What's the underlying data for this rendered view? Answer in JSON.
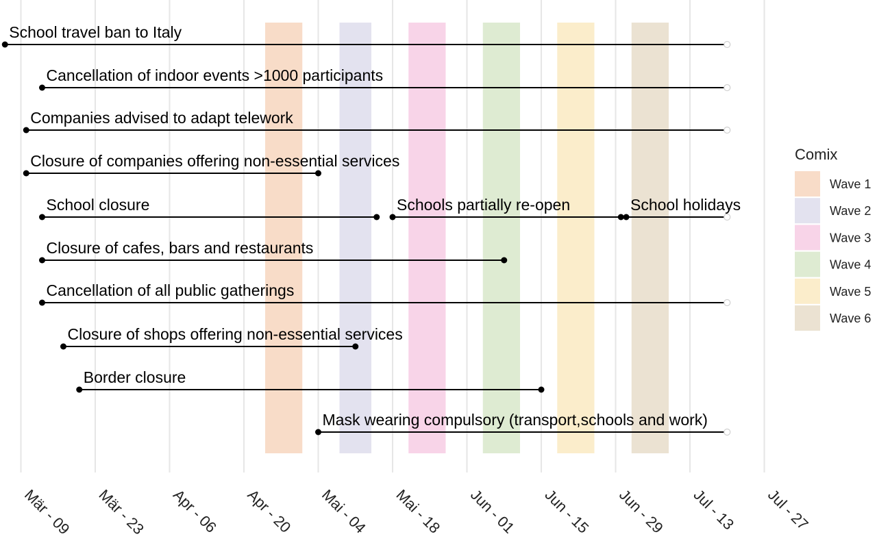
{
  "chart_data": {
    "type": "timeline",
    "x_axis": {
      "ticks": [
        "Mär - 09",
        "Mär - 23",
        "Apr - 06",
        "Apr - 20",
        "Mai - 04",
        "Mai - 18",
        "Jun - 01",
        "Jun - 15",
        "Jun - 29",
        "Jul - 13",
        "Jul - 27"
      ],
      "tick_dates": [
        "2020-03-09",
        "2020-03-23",
        "2020-04-06",
        "2020-04-20",
        "2020-05-04",
        "2020-05-18",
        "2020-06-01",
        "2020-06-15",
        "2020-06-29",
        "2020-07-13",
        "2020-07-27"
      ],
      "range": [
        "2020-03-06",
        "2020-07-27"
      ],
      "grid": true
    },
    "legend": {
      "title": "Comix",
      "position": "right",
      "items": [
        {
          "label": "Wave 1",
          "color": "#f8dcc8"
        },
        {
          "label": "Wave 2",
          "color": "#e3e2ef"
        },
        {
          "label": "Wave 3",
          "color": "#f8d4e8"
        },
        {
          "label": "Wave 4",
          "color": "#deebd2"
        },
        {
          "label": "Wave 5",
          "color": "#fbedcb"
        },
        {
          "label": "Wave 6",
          "color": "#ebe2d2"
        }
      ]
    },
    "waves": [
      {
        "name": "Wave 1",
        "start": "2020-04-24",
        "end": "2020-05-01",
        "color": "#f8dcc8"
      },
      {
        "name": "Wave 2",
        "start": "2020-05-08",
        "end": "2020-05-14",
        "color": "#e3e2ef"
      },
      {
        "name": "Wave 3",
        "start": "2020-05-21",
        "end": "2020-05-28",
        "color": "#f8d4e8"
      },
      {
        "name": "Wave 4",
        "start": "2020-06-04",
        "end": "2020-06-11",
        "color": "#deebd2"
      },
      {
        "name": "Wave 5",
        "start": "2020-06-18",
        "end": "2020-06-25",
        "color": "#fbedcb"
      },
      {
        "name": "Wave 6",
        "start": "2020-07-02",
        "end": "2020-07-09",
        "color": "#ebe2d2"
      }
    ],
    "measures": [
      {
        "label": "School travel ban to Italy",
        "start": "2020-03-06",
        "end": "2020-07-20",
        "ongoing": true
      },
      {
        "label": "Cancellation of indoor events >1000 participants",
        "start": "2020-03-13",
        "end": "2020-07-20",
        "ongoing": true
      },
      {
        "label": "Companies advised to adapt telework",
        "start": "2020-03-10",
        "end": "2020-07-20",
        "ongoing": true
      },
      {
        "label": "Closure of companies offering non-essential services",
        "start": "2020-03-10",
        "end": "2020-05-04",
        "ongoing": false
      },
      {
        "label": "School closure",
        "start": "2020-03-13",
        "end": "2020-05-15",
        "ongoing": false
      },
      {
        "label": "Schools partially re-open",
        "start": "2020-05-18",
        "end": "2020-06-30",
        "ongoing": false
      },
      {
        "label": "School holidays",
        "start": "2020-07-01",
        "end": "2020-07-20",
        "ongoing": true
      },
      {
        "label": "Closure of cafes, bars and restaurants",
        "start": "2020-03-13",
        "end": "2020-06-08",
        "ongoing": false
      },
      {
        "label": "Cancellation of all public gatherings",
        "start": "2020-03-13",
        "end": "2020-07-20",
        "ongoing": true
      },
      {
        "label": "Closure of shops offering non-essential services",
        "start": "2020-03-17",
        "end": "2020-05-11",
        "ongoing": false
      },
      {
        "label": "Border closure",
        "start": "2020-03-20",
        "end": "2020-06-15",
        "ongoing": false
      },
      {
        "label": "Mask wearing compulsory (transport,schools and work)",
        "start": "2020-05-04",
        "end": "2020-07-20",
        "ongoing": true
      }
    ]
  }
}
